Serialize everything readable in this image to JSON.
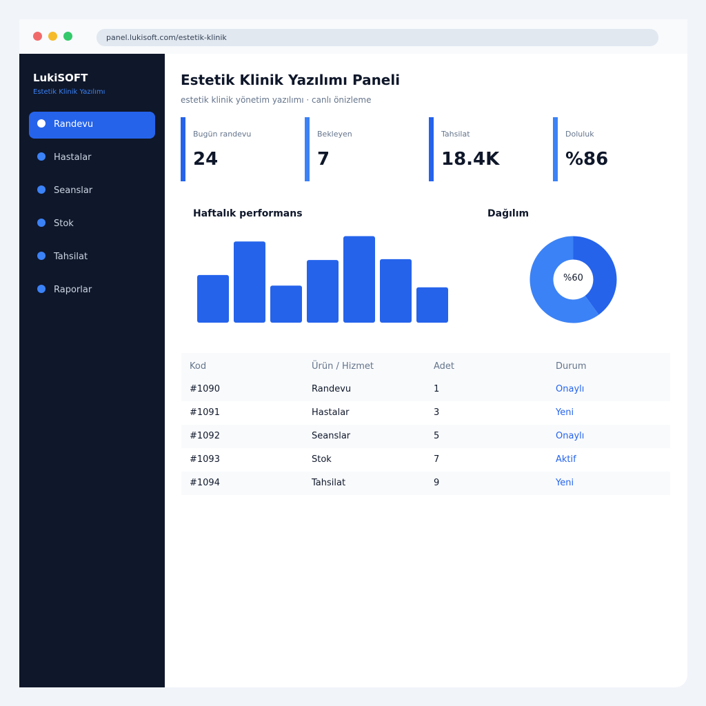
{
  "browser": {
    "url": "panel.lukisoft.com/estetik-klinik"
  },
  "sidebar": {
    "brand": "LukiSOFT",
    "brand_sub": "Estetik Klinik Yazılımı",
    "items": [
      {
        "label": "Randevu",
        "active": true
      },
      {
        "label": "Hastalar"
      },
      {
        "label": "Seanslar"
      },
      {
        "label": "Stok"
      },
      {
        "label": "Tahsilat"
      },
      {
        "label": "Raporlar"
      }
    ]
  },
  "header": {
    "title": "Estetik Klinik Yazılımı Paneli",
    "subtitle": "estetik klinik yönetim yazılımı · canlı önizleme"
  },
  "stats": [
    {
      "label": "Bugün randevu",
      "value": "24"
    },
    {
      "label": "Bekleyen",
      "value": "7"
    },
    {
      "label": "Tahsilat",
      "value": "18.4K"
    },
    {
      "label": "Doluluk",
      "value": "%86"
    }
  ],
  "chart_data": [
    {
      "type": "bar",
      "title": "Haftalık performans",
      "values": [
        54,
        92,
        42,
        71,
        98,
        72,
        40
      ],
      "ylim": [
        0,
        100
      ],
      "grid": false,
      "color": "#2563eb"
    },
    {
      "type": "pie",
      "title": "Dağılım",
      "values": [
        40,
        60
      ],
      "center_label": "%60",
      "colors": [
        "#2563eb",
        "#3b82f6"
      ]
    }
  ],
  "table": {
    "headers": [
      "Kod",
      "Ürün / Hizmet",
      "Adet",
      "Durum"
    ],
    "rows": [
      [
        "#1090",
        "Randevu",
        "1",
        "Onaylı"
      ],
      [
        "#1091",
        "Hastalar",
        "3",
        "Yeni"
      ],
      [
        "#1092",
        "Seanslar",
        "5",
        "Onaylı"
      ],
      [
        "#1093",
        "Stok",
        "7",
        "Aktif"
      ],
      [
        "#1094",
        "Tahsilat",
        "9",
        "Yeni"
      ]
    ]
  },
  "colors": {
    "accent": "#2563eb",
    "accent_light": "#3b82f6",
    "sidebar_bg": "#0f172a"
  }
}
